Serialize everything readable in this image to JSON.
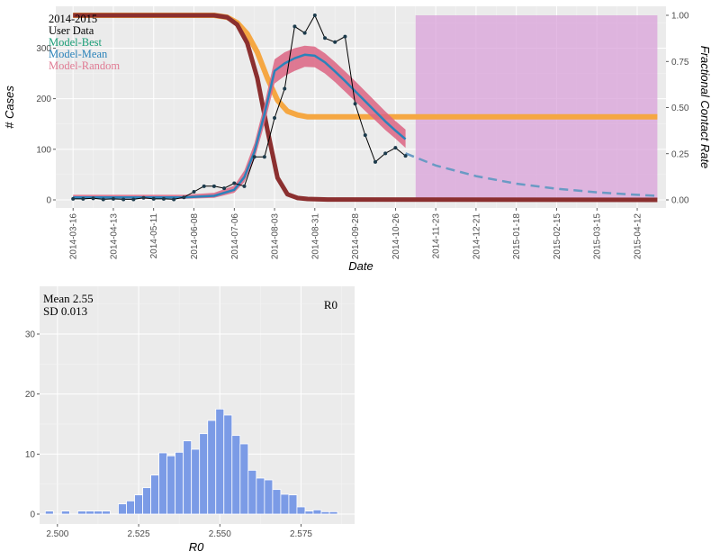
{
  "chart_data": [
    {
      "type": "line",
      "legend": [
        "2014-2015",
        "User Data",
        "Model-Best",
        "Model-Mean",
        "Model-Random"
      ],
      "legend_colors": [
        "#000000",
        "#000000",
        "#1b9e77",
        "#2b83ba",
        "#e07a93"
      ],
      "legend_position": "top-left",
      "xlabel": "Date",
      "ylabel": "# Cases",
      "y2label": "Fractional Contact Rate",
      "ylim": [
        0,
        365
      ],
      "y2lim": [
        0,
        1
      ],
      "yticks": [
        "0",
        "100",
        "200",
        "300"
      ],
      "y2ticks": [
        "0.00",
        "0.25",
        "0.50",
        "0.75",
        "1.00"
      ],
      "xticks": [
        "2014-03-16",
        "2014-04-13",
        "2014-05-11",
        "2014-06-08",
        "2014-07-06",
        "2014-08-03",
        "2014-08-31",
        "2014-09-28",
        "2014-10-26",
        "2014-11-23",
        "2014-12-21",
        "2015-01-18",
        "2015-02-15",
        "2015-03-15",
        "2015-04-12"
      ],
      "x_range": [
        "2014-03-04",
        "2015-05-02"
      ],
      "shaded_region": {
        "from": "2014-11-09",
        "to": "2015-04-26",
        "color": "#d9a1d9"
      },
      "user_data": {
        "x": [
          "2014-03-16",
          "2014-03-23",
          "2014-03-30",
          "2014-04-06",
          "2014-04-13",
          "2014-04-20",
          "2014-04-27",
          "2014-05-04",
          "2014-05-11",
          "2014-05-18",
          "2014-05-25",
          "2014-06-01",
          "2014-06-08",
          "2014-06-15",
          "2014-06-22",
          "2014-06-29",
          "2014-07-06",
          "2014-07-13",
          "2014-07-20",
          "2014-07-27",
          "2014-08-03",
          "2014-08-10",
          "2014-08-17",
          "2014-08-24",
          "2014-08-31",
          "2014-09-07",
          "2014-09-14",
          "2014-09-21",
          "2014-09-28",
          "2014-10-05",
          "2014-10-12",
          "2014-10-19",
          "2014-10-26",
          "2014-11-02"
        ],
        "y": [
          2,
          2,
          3,
          1,
          2,
          1,
          1,
          4,
          2,
          2,
          1,
          5,
          16,
          27,
          27,
          23,
          33,
          27,
          85,
          85,
          162,
          220,
          343,
          330,
          365,
          320,
          312,
          323,
          190,
          128,
          75,
          92,
          103,
          87
        ]
      },
      "model_mean": {
        "x": [
          "2014-03-16",
          "2014-06-01",
          "2014-06-22",
          "2014-07-06",
          "2014-07-13",
          "2014-07-20",
          "2014-07-27",
          "2014-08-03",
          "2014-08-10",
          "2014-08-17",
          "2014-08-24",
          "2014-08-31",
          "2014-09-07",
          "2014-09-14",
          "2014-09-21",
          "2014-09-28",
          "2014-10-05",
          "2014-10-12",
          "2014-10-19",
          "2014-10-26",
          "2014-11-02"
        ],
        "y": [
          5,
          5,
          8,
          20,
          45,
          95,
          170,
          255,
          270,
          280,
          287,
          285,
          272,
          254,
          235,
          215,
          195,
          175,
          155,
          137,
          120
        ]
      },
      "model_band": {
        "x": [
          "2014-03-16",
          "2014-06-01",
          "2014-06-22",
          "2014-07-06",
          "2014-07-13",
          "2014-07-20",
          "2014-07-27",
          "2014-08-03",
          "2014-08-10",
          "2014-08-17",
          "2014-08-24",
          "2014-08-31",
          "2014-09-07",
          "2014-09-14",
          "2014-09-21",
          "2014-09-28",
          "2014-10-05",
          "2014-10-12",
          "2014-10-19",
          "2014-10-26",
          "2014-11-02"
        ],
        "lower": [
          2,
          2,
          4,
          14,
          35,
          80,
          150,
          230,
          245,
          255,
          263,
          262,
          250,
          233,
          214,
          195,
          176,
          157,
          138,
          121,
          103
        ],
        "upper": [
          10,
          10,
          14,
          28,
          58,
          112,
          190,
          278,
          292,
          300,
          305,
          303,
          290,
          273,
          254,
          235,
          215,
          195,
          175,
          156,
          139
        ]
      },
      "projection": {
        "x": [
          "2014-11-02",
          "2014-11-23",
          "2014-12-21",
          "2015-01-18",
          "2015-02-15",
          "2015-03-15",
          "2015-04-12",
          "2015-04-26"
        ],
        "y": [
          92,
          68,
          47,
          32,
          22,
          15,
          10,
          8
        ]
      },
      "contact_rate_orange": {
        "x": [
          "2014-03-16",
          "2014-06-22",
          "2014-07-01",
          "2014-07-08",
          "2014-07-15",
          "2014-07-22",
          "2014-07-29",
          "2014-08-05",
          "2014-08-12",
          "2014-08-19",
          "2014-08-26",
          "2014-09-09",
          "2015-04-26"
        ],
        "y": [
          1.0,
          1.0,
          0.99,
          0.96,
          0.9,
          0.8,
          0.66,
          0.54,
          0.48,
          0.46,
          0.45,
          0.45,
          0.45
        ]
      },
      "contact_rate_darkred": {
        "x": [
          "2014-03-16",
          "2014-06-22",
          "2014-07-01",
          "2014-07-08",
          "2014-07-15",
          "2014-07-22",
          "2014-07-29",
          "2014-08-05",
          "2014-08-12",
          "2014-08-19",
          "2014-08-26",
          "2014-09-09",
          "2015-04-26"
        ],
        "y": [
          1.0,
          1.0,
          0.99,
          0.95,
          0.85,
          0.66,
          0.38,
          0.12,
          0.03,
          0.01,
          0.005,
          0.002,
          0.0
        ]
      }
    },
    {
      "type": "bar",
      "xlabel": "R0",
      "ylabel": "",
      "annotation_left": [
        "Mean 2.55",
        "SD 0.013"
      ],
      "annotation_right": "R0",
      "xlim": [
        2.4945,
        2.5915
      ],
      "ylim": [
        0,
        37.5
      ],
      "xticks": [
        "2.500",
        "2.525",
        "2.550",
        "2.575"
      ],
      "yticks": [
        "0",
        "10",
        "20",
        "30"
      ],
      "bin_width": 0.0025,
      "bins": [
        2.4975,
        2.5,
        2.5025,
        2.505,
        2.5075,
        2.51,
        2.5125,
        2.515,
        2.5175,
        2.52,
        2.5225,
        2.525,
        2.5275,
        2.53,
        2.5325,
        2.535,
        2.5375,
        2.54,
        2.5425,
        2.545,
        2.5475,
        2.55,
        2.5525,
        2.555,
        2.5575,
        2.56,
        2.5625,
        2.565,
        2.5675,
        2.57,
        2.5725,
        2.575,
        2.5775,
        2.58,
        2.5825,
        2.585,
        2.5875
      ],
      "counts": [
        0.5,
        0,
        0.5,
        0,
        0.5,
        0.5,
        0.5,
        0.5,
        0,
        1.7,
        2.2,
        3.2,
        4.4,
        6.5,
        10.2,
        9.7,
        10.3,
        12.2,
        10.8,
        13.4,
        15.6,
        17.5,
        16.5,
        13.1,
        11.7,
        7.3,
        6.0,
        5.7,
        4.1,
        3.3,
        3.2,
        1.2,
        0.5,
        0.7,
        0.4,
        0.4,
        0
      ]
    }
  ]
}
